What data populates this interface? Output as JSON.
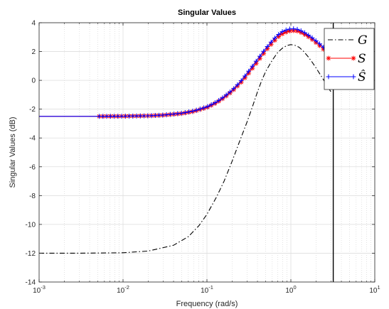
{
  "chart_data": {
    "type": "line",
    "title": "Singular Values",
    "xlabel": "Frequency (rad/s)",
    "ylabel": "Singular Values (dB)",
    "xscale": "log",
    "xlim": [
      0.001,
      10
    ],
    "ylim": [
      -14,
      4
    ],
    "x_ticks": [
      0.001,
      0.01,
      0.1,
      1,
      10
    ],
    "x_tick_labels": [
      {
        "base": "10",
        "exp": "-3"
      },
      {
        "base": "10",
        "exp": "-2"
      },
      {
        "base": "10",
        "exp": "-1"
      },
      {
        "base": "10",
        "exp": "0"
      },
      {
        "base": "10",
        "exp": "1"
      }
    ],
    "y_ticks": [
      -14,
      -12,
      -10,
      -8,
      -6,
      -4,
      -2,
      0,
      2,
      4
    ],
    "y_tick_labels": [
      "-14",
      "-12",
      "-10",
      "-8",
      "-6",
      "-4",
      "-2",
      "0",
      "2",
      "4"
    ],
    "grid": true,
    "minor_grid": true,
    "legend_position": "top-right",
    "vertical_line_x": 3.2,
    "series": [
      {
        "name": "G",
        "legend_label": "G",
        "color": "#000000",
        "style": "dash-dot",
        "marker": "none",
        "x": [
          0.001,
          0.003,
          0.01,
          0.02,
          0.04,
          0.06,
          0.08,
          0.1,
          0.13,
          0.16,
          0.2,
          0.25,
          0.3,
          0.35,
          0.4,
          0.45,
          0.5,
          0.6,
          0.7,
          0.8,
          0.9,
          1.0,
          1.1,
          1.25,
          1.4,
          1.6,
          1.8,
          2.0,
          2.3,
          2.6,
          3.0
        ],
        "y": [
          -12.0,
          -12.0,
          -11.97,
          -11.85,
          -11.45,
          -10.85,
          -10.1,
          -9.3,
          -8.1,
          -7.0,
          -5.6,
          -4.1,
          -2.9,
          -1.8,
          -0.8,
          0.0,
          0.6,
          1.4,
          1.95,
          2.25,
          2.42,
          2.48,
          2.45,
          2.3,
          2.05,
          1.65,
          1.25,
          0.85,
          0.3,
          -0.2,
          -0.8
        ]
      },
      {
        "name": "S",
        "legend_label": "S",
        "color": "#ff0000",
        "style": "solid",
        "marker": "asterisk",
        "x": [
          0.001,
          0.003,
          0.005,
          0.01,
          0.02,
          0.03,
          0.05,
          0.07,
          0.1,
          0.13,
          0.16,
          0.2,
          0.25,
          0.3,
          0.4,
          0.5,
          0.6,
          0.7,
          0.8,
          0.9,
          1.0,
          1.1,
          1.2,
          1.35,
          1.5,
          1.7,
          1.9,
          2.2,
          2.5,
          2.8,
          3.1
        ],
        "y": [
          -2.5,
          -2.5,
          -2.5,
          -2.49,
          -2.46,
          -2.42,
          -2.3,
          -2.15,
          -1.88,
          -1.55,
          -1.2,
          -0.75,
          -0.2,
          0.35,
          1.3,
          2.05,
          2.6,
          3.0,
          3.25,
          3.38,
          3.45,
          3.45,
          3.42,
          3.3,
          3.15,
          2.95,
          2.72,
          2.42,
          2.12,
          1.85,
          1.55
        ]
      },
      {
        "name": "S_hat",
        "legend_label": "Ŝ",
        "color": "#0000ff",
        "style": "solid",
        "marker": "plus",
        "x": [
          0.001,
          0.003,
          0.005,
          0.01,
          0.02,
          0.03,
          0.05,
          0.07,
          0.1,
          0.13,
          0.16,
          0.2,
          0.25,
          0.3,
          0.4,
          0.5,
          0.6,
          0.7,
          0.8,
          0.9,
          1.0,
          1.1,
          1.2,
          1.35,
          1.5,
          1.7,
          1.9,
          2.2,
          2.5,
          2.8,
          3.1
        ],
        "y": [
          -2.5,
          -2.5,
          -2.5,
          -2.49,
          -2.46,
          -2.41,
          -2.28,
          -2.12,
          -1.84,
          -1.5,
          -1.14,
          -0.68,
          -0.1,
          0.48,
          1.45,
          2.2,
          2.75,
          3.15,
          3.4,
          3.52,
          3.58,
          3.58,
          3.54,
          3.42,
          3.27,
          3.06,
          2.84,
          2.54,
          2.24,
          1.96,
          1.66
        ]
      }
    ]
  }
}
